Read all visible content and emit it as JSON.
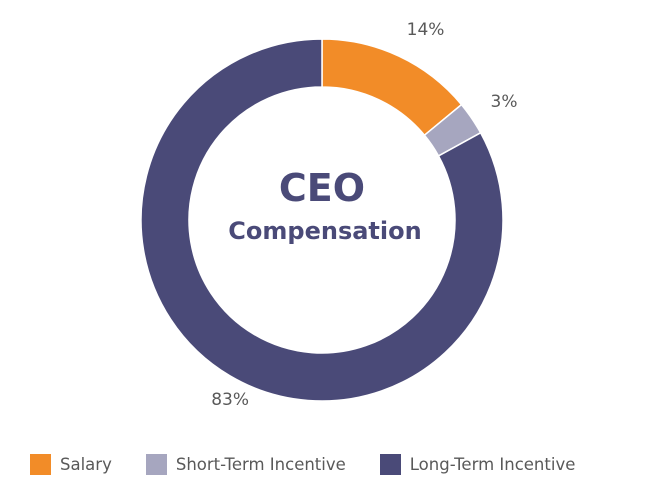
{
  "chart_data": {
    "type": "pie",
    "variant": "donut",
    "center_title": "CEO",
    "center_subtitle": "Compensation",
    "slices": [
      {
        "name": "Salary",
        "value": 14,
        "label": "14%",
        "color": "#f28c28"
      },
      {
        "name": "Short-Term Incentive",
        "value": 3,
        "label": "3%",
        "color": "#a6a6bf"
      },
      {
        "name": "Long-Term Incentive",
        "value": 83,
        "label": "83%",
        "color": "#4a4a78"
      }
    ],
    "legend_position": "bottom"
  }
}
